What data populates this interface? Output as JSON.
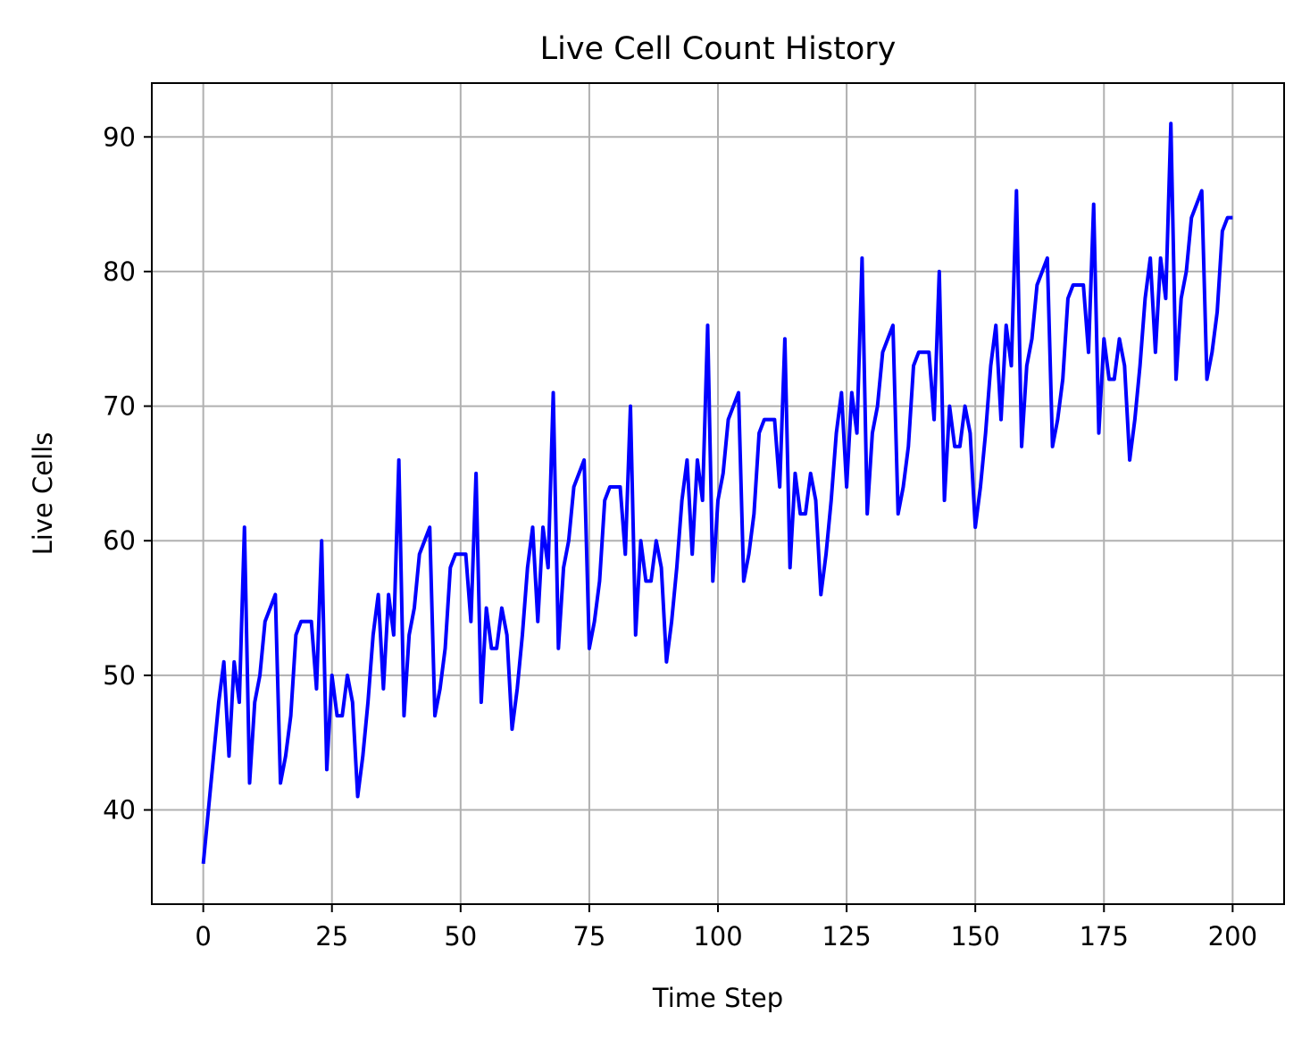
{
  "chart_data": {
    "type": "line",
    "title": "Live Cell Count History",
    "xlabel": "Time Step",
    "ylabel": "Live Cells",
    "xlim": [
      -10,
      210
    ],
    "ylim": [
      33,
      94
    ],
    "xticks": [
      0,
      25,
      50,
      75,
      100,
      125,
      150,
      175,
      200
    ],
    "yticks": [
      40,
      50,
      60,
      70,
      80,
      90
    ],
    "grid": true,
    "line_color": "#0000ff",
    "grid_color": "#b0b0b0",
    "series": [
      {
        "x_start": 0,
        "x_step": 1,
        "values": [
          36,
          40,
          44,
          48,
          51,
          44,
          51,
          48,
          61,
          42,
          48,
          50,
          54,
          55,
          56,
          42,
          44,
          47,
          53,
          54,
          54,
          54,
          49,
          60,
          43,
          50,
          47,
          47,
          50,
          48,
          41,
          44,
          48,
          53,
          56,
          49,
          56,
          53,
          66,
          47,
          53,
          55,
          59,
          60,
          61,
          47,
          49,
          52,
          58,
          59,
          59,
          59,
          54,
          65,
          48,
          55,
          52,
          52,
          55,
          53,
          46,
          49,
          53,
          58,
          61,
          54,
          61,
          58,
          71,
          52,
          58,
          60,
          64,
          65,
          66,
          52,
          54,
          57,
          63,
          64,
          64,
          64,
          59,
          70,
          53,
          60,
          57,
          57,
          60,
          58,
          51,
          54,
          58,
          63,
          66,
          59,
          66,
          63,
          76,
          57,
          63,
          65,
          69,
          70,
          71,
          57,
          59,
          62,
          68,
          69,
          69,
          69,
          64,
          75,
          58,
          65,
          62,
          62,
          65,
          63,
          56,
          59,
          63,
          68,
          71,
          64,
          71,
          68,
          81,
          62,
          68,
          70,
          74,
          75,
          76,
          62,
          64,
          67,
          73,
          74,
          74,
          74,
          69,
          80,
          63,
          70,
          67,
          67,
          70,
          68,
          61,
          64,
          68,
          73,
          76,
          69,
          76,
          73,
          86,
          67,
          73,
          75,
          79,
          80,
          81,
          67,
          69,
          72,
          78,
          79,
          79,
          79,
          74,
          85,
          68,
          75,
          72,
          72,
          75,
          73,
          66,
          69,
          73,
          78,
          81,
          74,
          81,
          78,
          91,
          72,
          78,
          80,
          84,
          85,
          86,
          72,
          74,
          77,
          83,
          84,
          84
        ]
      }
    ]
  }
}
